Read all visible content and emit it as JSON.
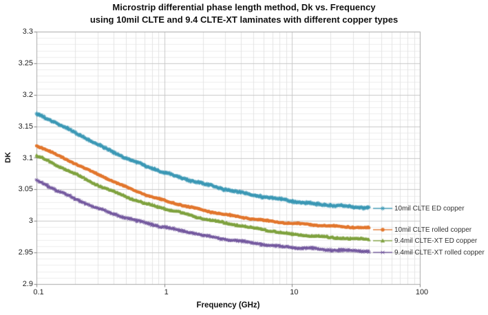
{
  "title": {
    "line1": "Microstrip differential phase length method, Dk vs. Frequency",
    "line2": "using 10mil CLTE and 9.4 CLTE-XT laminates with different copper types"
  },
  "axes": {
    "y": {
      "label": "DK",
      "min": 2.9,
      "max": 3.3,
      "major_tick_step": 0.05,
      "minor_tick_step": 0.01,
      "tick_labels": [
        "2.9",
        "2.95",
        "3",
        "3.05",
        "3.1",
        "3.15",
        "3.2",
        "3.25",
        "3.3"
      ],
      "tick_values": [
        2.9,
        2.95,
        3,
        3.05,
        3.1,
        3.15,
        3.2,
        3.25,
        3.3
      ]
    },
    "x": {
      "label": "Frequency (GHz)",
      "scale": "log",
      "min": 0.1,
      "max": 100,
      "tick_labels": [
        "0.1",
        "1",
        "10",
        "100"
      ],
      "tick_values": [
        0.1,
        1,
        10,
        100
      ]
    }
  },
  "chart_data": {
    "type": "line",
    "title": "Microstrip differential phase length method, Dk vs. Frequency using 10mil CLTE and 9.4 CLTE-XT laminates with different copper types",
    "xlabel": "Frequency (GHz)",
    "ylabel": "DK",
    "x_scale": "log",
    "xlim": [
      0.1,
      100
    ],
    "ylim": [
      2.9,
      3.3
    ],
    "grid": true,
    "legend_position": "right-inside",
    "x": [
      0.1,
      0.15,
      0.2,
      0.3,
      0.5,
      0.7,
      1,
      1.5,
      2,
      3,
      5,
      7,
      10,
      15,
      20,
      30,
      40
    ],
    "series": [
      {
        "name": "10mil CLTE ED copper",
        "color": "#3B98B5",
        "marker": "star",
        "values": [
          3.17,
          3.153,
          3.14,
          3.121,
          3.1,
          3.088,
          3.077,
          3.066,
          3.059,
          3.05,
          3.041,
          3.036,
          3.031,
          3.027,
          3.025,
          3.022,
          3.021
        ]
      },
      {
        "name": "10mil CLTE rolled copper",
        "color": "#E2772E",
        "marker": "circle",
        "values": [
          3.12,
          3.103,
          3.091,
          3.074,
          3.054,
          3.042,
          3.032,
          3.023,
          3.017,
          3.01,
          3.003,
          2.999,
          2.996,
          2.994,
          2.992,
          2.99,
          2.989
        ]
      },
      {
        "name": "9.4mil CLTE-XT ED copper",
        "color": "#7FA23F",
        "marker": "triangle",
        "values": [
          3.104,
          3.087,
          3.075,
          3.057,
          3.039,
          3.028,
          3.02,
          3.011,
          3.004,
          2.997,
          2.989,
          2.984,
          2.979,
          2.976,
          2.974,
          2.972,
          2.971
        ]
      },
      {
        "name": "9.4mil CLTE-XT rolled copper",
        "color": "#74599F",
        "marker": "xstar",
        "values": [
          3.064,
          3.047,
          3.035,
          3.02,
          3.005,
          2.997,
          2.99,
          2.983,
          2.977,
          2.971,
          2.965,
          2.961,
          2.958,
          2.956,
          2.954,
          2.953,
          2.952
        ]
      }
    ]
  },
  "legend": {
    "items": [
      {
        "label": "10mil CLTE ED copper"
      },
      {
        "label": "10mil CLTE rolled copper"
      },
      {
        "label": "9.4mil CLTE-XT ED copper"
      },
      {
        "label": "9.4mil CLTE-XT rolled copper"
      }
    ]
  },
  "colors": {
    "major_grid": "#C8C8C8",
    "minor_grid": "#ECECEC",
    "axis_border": "#A9A9A9",
    "tick": "#808080",
    "title_text": "#111111",
    "tick_text": "#222222",
    "legend_text": "#333333"
  }
}
